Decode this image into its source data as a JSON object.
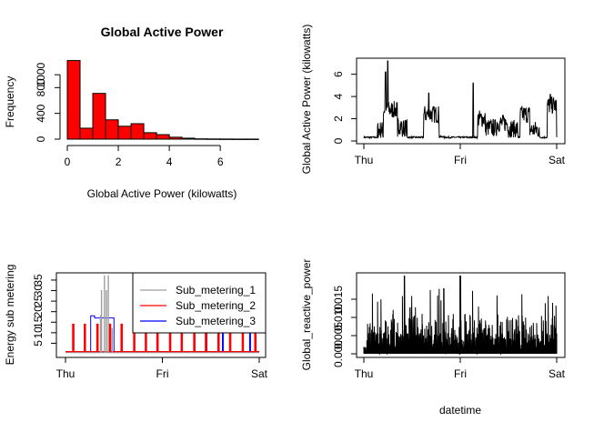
{
  "chart_data": [
    {
      "type": "bar",
      "panel": "histogram",
      "title": "Global Active Power",
      "xlabel": "Global Active Power (kilowatts)",
      "ylabel": "Frequency",
      "xlim": [
        0,
        7.6
      ],
      "ylim": [
        0,
        1200
      ],
      "xticks": [
        0,
        2,
        4,
        6
      ],
      "yticks": [
        0,
        400,
        800,
        1000
      ],
      "bin_width": 0.5,
      "bin_starts": [
        0,
        0.5,
        1.0,
        1.5,
        2.0,
        2.5,
        3.0,
        3.5,
        4.0,
        4.5,
        5.0,
        5.5,
        6.0,
        6.5,
        7.0
      ],
      "values": [
        1220,
        170,
        710,
        300,
        200,
        240,
        100,
        70,
        30,
        15,
        5,
        3,
        2,
        1,
        1
      ],
      "bar_color": "#ff0000"
    },
    {
      "type": "line",
      "panel": "active-power-time",
      "xlabel": "",
      "ylabel": "Global Active Power (kilowatts)",
      "xlim": [
        0,
        2
      ],
      "ylim": [
        0,
        7.2
      ],
      "xticks": [
        {
          "v": 0,
          "label": "Thu"
        },
        {
          "v": 1,
          "label": "Fri"
        },
        {
          "v": 2,
          "label": "Sat"
        }
      ],
      "yticks": [
        0,
        2,
        4,
        6
      ],
      "line_color": "#000000"
    },
    {
      "type": "line",
      "panel": "sub-metering",
      "xlabel": "",
      "ylabel": "Energy sub metering",
      "xlim": [
        0,
        2
      ],
      "ylim": [
        0,
        38
      ],
      "xticks": [
        {
          "v": 0,
          "label": "Thu"
        },
        {
          "v": 1,
          "label": "Fri"
        },
        {
          "v": 2,
          "label": "Sat"
        }
      ],
      "yticks": [
        5,
        10,
        15,
        20,
        25,
        30,
        35
      ],
      "legend": "top-right",
      "series": [
        {
          "name": "Sub_metering_1",
          "color": "#9e9e9e"
        },
        {
          "name": "Sub_metering_2",
          "color": "#ff0000"
        },
        {
          "name": "Sub_metering_3",
          "color": "#0000ff"
        }
      ]
    },
    {
      "type": "line",
      "panel": "reactive-power",
      "xlabel": "datetime",
      "ylabel": "Global_reactive_power",
      "xlim": [
        0,
        2
      ],
      "ylim": [
        0,
        0.022
      ],
      "xticks": [
        {
          "v": 0,
          "label": "Thu"
        },
        {
          "v": 1,
          "label": "Fri"
        },
        {
          "v": 2,
          "label": "Sat"
        }
      ],
      "yticks": [
        0.0,
        0.005,
        0.01,
        0.015
      ],
      "ytick_labels": [
        "0.000",
        "0.005",
        "0.010",
        "0.015"
      ],
      "line_color": "#000000"
    }
  ]
}
